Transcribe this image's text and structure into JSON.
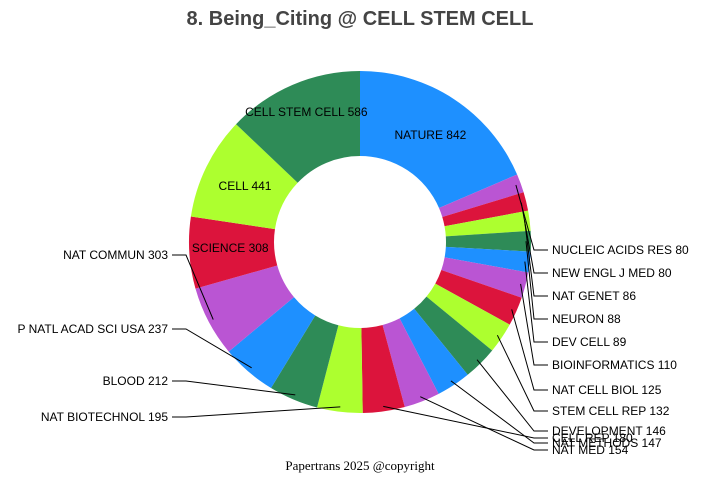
{
  "chart_data": {
    "type": "pie",
    "title": "8. Being_Citing @ CELL STEM CELL",
    "footer": "Papertrans 2025 @copyright",
    "donut": true,
    "slices": [
      {
        "label": "NATURE",
        "value": 842,
        "color": "#1E90FF"
      },
      {
        "label": "NUCLEIC ACIDS RES",
        "value": 80,
        "color": "#BA55D3"
      },
      {
        "label": "NEW ENGL J MED",
        "value": 80,
        "color": "#DC143C"
      },
      {
        "label": "NAT GENET",
        "value": 86,
        "color": "#ADFF2F"
      },
      {
        "label": "NEURON",
        "value": 88,
        "color": "#2E8B57"
      },
      {
        "label": "DEV CELL",
        "value": 89,
        "color": "#1E90FF"
      },
      {
        "label": "BIOINFORMATICS",
        "value": 110,
        "color": "#BA55D3"
      },
      {
        "label": "NAT CELL BIOL",
        "value": 125,
        "color": "#DC143C"
      },
      {
        "label": "STEM CELL REP",
        "value": 132,
        "color": "#ADFF2F"
      },
      {
        "label": "DEVELOPMENT",
        "value": 146,
        "color": "#2E8B57"
      },
      {
        "label": "NAT METHODS",
        "value": 147,
        "color": "#1E90FF"
      },
      {
        "label": "NAT MED",
        "value": 154,
        "color": "#BA55D3"
      },
      {
        "label": "CELL REP",
        "value": 180,
        "color": "#DC143C"
      },
      {
        "label": "NAT BIOTECHNOL",
        "value": 195,
        "color": "#ADFF2F"
      },
      {
        "label": "BLOOD",
        "value": 212,
        "color": "#2E8B57"
      },
      {
        "label": "P NATL ACAD SCI USA",
        "value": 237,
        "color": "#1E90FF"
      },
      {
        "label": "NAT COMMUN",
        "value": 303,
        "color": "#BA55D3"
      },
      {
        "label": "SCIENCE",
        "value": 308,
        "color": "#DC143C"
      },
      {
        "label": "CELL",
        "value": 441,
        "color": "#ADFF2F"
      },
      {
        "label": "CELL STEM CELL",
        "value": 586,
        "color": "#2E8B57"
      }
    ]
  }
}
